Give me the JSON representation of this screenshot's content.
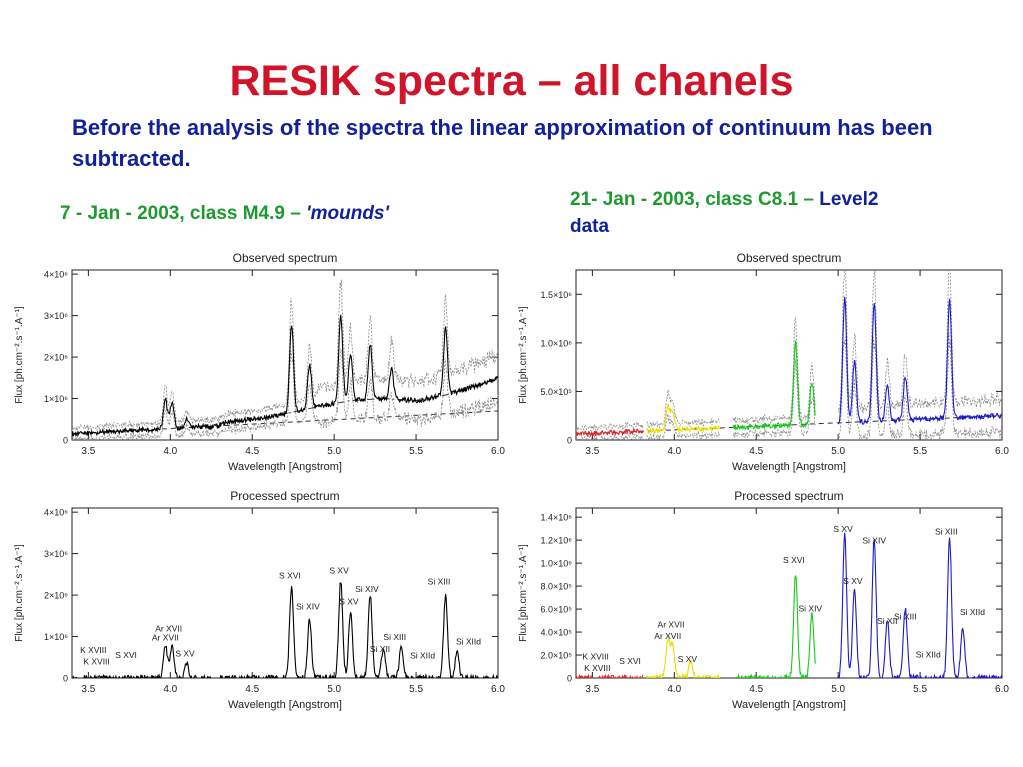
{
  "slide": {
    "title": "RESIK spectra – all chanels",
    "subtitle": "Before the analysis of the spectra the linear approximation of continuum has been subtracted.",
    "left_caption_main": "7 - Jan - 2003, class M4.9 – ",
    "left_caption_em": "'mounds'",
    "right_caption_main": "21- Jan - 2003, class C8.1 – ",
    "right_caption_blue1": "Level2",
    "right_caption_blue2": "data"
  },
  "colors": {
    "title": "#d0152b",
    "subtitle": "#10219a",
    "caption_green": "#1d9a2e",
    "ch1": "#e0262b",
    "ch2": "#e8e000",
    "ch3": "#18c818",
    "ch4": "#1a1ac8"
  },
  "chart_data": [
    {
      "type": "line",
      "panel": "left-observed",
      "title": "Observed spectrum",
      "xlabel": "Wavelength [Angstrom]",
      "ylabel": "Flux [ph.cm⁻².s⁻¹.A⁻¹]",
      "xlim": [
        3.4,
        6.0
      ],
      "ylim": [
        0,
        4100000
      ],
      "xticks": [
        3.5,
        4.0,
        4.5,
        5.0,
        5.5,
        6.0
      ],
      "xtick_labels": [
        "3.5",
        "4.0",
        "4.5",
        "5.0",
        "5.5",
        "6.0"
      ],
      "yticks": [
        0,
        1000000,
        2000000,
        3000000,
        4000000
      ],
      "ytick_labels": [
        "0",
        "1×10⁶",
        "2×10⁶",
        "3×10⁶",
        "4×10⁶"
      ],
      "baseline": [
        [
          3.4,
          150000
        ],
        [
          6.0,
          700000
        ]
      ],
      "mound": [
        [
          4.3,
          400000
        ],
        [
          4.6,
          550000
        ],
        [
          4.9,
          800000
        ],
        [
          5.1,
          950000
        ],
        [
          5.3,
          1000000
        ],
        [
          5.5,
          950000
        ],
        [
          5.7,
          1100000
        ],
        [
          5.9,
          1350000
        ],
        [
          6.0,
          1500000
        ]
      ],
      "peaks": [
        [
          3.97,
          950000
        ],
        [
          4.01,
          900000
        ],
        [
          4.1,
          500000
        ],
        [
          4.74,
          2800000
        ],
        [
          4.85,
          1800000
        ],
        [
          5.04,
          3000000
        ],
        [
          5.1,
          2100000
        ],
        [
          5.22,
          2300000
        ],
        [
          5.35,
          1700000
        ],
        [
          5.68,
          2700000
        ]
      ],
      "series": [
        {
          "x_range": [
            3.4,
            6.0
          ],
          "color": "#000"
        }
      ]
    },
    {
      "type": "line",
      "panel": "left-processed",
      "title": "Processed spectrum",
      "xlabel": "Wavelength [Angstrom]",
      "ylabel": "Flux [ph.cm⁻².s⁻¹.A⁻¹]",
      "xlim": [
        3.4,
        6.0
      ],
      "ylim": [
        0,
        4100000
      ],
      "xticks": [
        3.5,
        4.0,
        4.5,
        5.0,
        5.5,
        6.0
      ],
      "xtick_labels": [
        "3.5",
        "4.0",
        "4.5",
        "5.0",
        "5.5",
        "6.0"
      ],
      "yticks": [
        0,
        1000000,
        2000000,
        3000000,
        4000000
      ],
      "ytick_labels": [
        "0",
        "1×10⁶",
        "2×10⁶",
        "3×10⁶",
        "4×10⁶"
      ],
      "peaks": [
        [
          3.97,
          800000
        ],
        [
          4.01,
          750000
        ],
        [
          4.1,
          350000
        ],
        [
          4.74,
          2200000
        ],
        [
          4.85,
          1400000
        ],
        [
          5.04,
          2350000
        ],
        [
          5.1,
          1600000
        ],
        [
          5.22,
          2000000
        ],
        [
          5.3,
          700000
        ],
        [
          5.41,
          750000
        ],
        [
          5.68,
          2000000
        ],
        [
          5.75,
          600000
        ]
      ],
      "gaps": [
        [
          4.25,
          4.3
        ]
      ],
      "series": [
        {
          "x_range": [
            3.4,
            6.0
          ],
          "color": "#000"
        }
      ],
      "annotations": [
        {
          "text": "K  XVIII",
          "x": 3.53,
          "y": 600000
        },
        {
          "text": "K  XVIII",
          "x": 3.55,
          "y": 330000
        },
        {
          "text": "S  XVI",
          "x": 3.73,
          "y": 480000
        },
        {
          "text": "Ar  XVII",
          "x": 3.99,
          "y": 1120000
        },
        {
          "text": "Ar  XVII",
          "x": 3.97,
          "y": 900000
        },
        {
          "text": "S  XV",
          "x": 4.09,
          "y": 520000
        },
        {
          "text": "S  XVI",
          "x": 4.73,
          "y": 2400000
        },
        {
          "text": "Si  XIV",
          "x": 4.84,
          "y": 1650000
        },
        {
          "text": "S  XV",
          "x": 5.03,
          "y": 2520000
        },
        {
          "text": "S  XV",
          "x": 5.09,
          "y": 1770000
        },
        {
          "text": "Si  XIV",
          "x": 5.2,
          "y": 2070000
        },
        {
          "text": "Si  XII",
          "x": 5.28,
          "y": 630000
        },
        {
          "text": "Si  XIII",
          "x": 5.37,
          "y": 920000
        },
        {
          "text": "Si  XIId",
          "x": 5.54,
          "y": 470000
        },
        {
          "text": "Si  XIII",
          "x": 5.64,
          "y": 2250000
        },
        {
          "text": "Si  XIId",
          "x": 5.82,
          "y": 810000
        }
      ]
    },
    {
      "type": "line",
      "panel": "right-observed",
      "title": "Observed spectrum",
      "xlabel": "Wavelength [Angstrom]",
      "ylabel": "Flux [ph.cm⁻².s⁻¹.A⁻¹]",
      "xlim": [
        3.4,
        6.0
      ],
      "ylim": [
        0,
        1750000
      ],
      "xticks": [
        3.5,
        4.0,
        4.5,
        5.0,
        5.5,
        6.0
      ],
      "xtick_labels": [
        "3.5",
        "4.0",
        "4.5",
        "5.0",
        "5.5",
        "6.0"
      ],
      "yticks": [
        0,
        500000,
        1000000,
        1500000
      ],
      "ytick_labels": [
        "0",
        "5.0×10⁵",
        "1.0×10⁶",
        "1.5×10⁶"
      ],
      "baseline": [
        [
          3.4,
          60000
        ],
        [
          6.0,
          250000
        ]
      ],
      "peaks": [
        [
          3.96,
          350000
        ],
        [
          3.99,
          300000
        ],
        [
          4.74,
          1000000
        ],
        [
          4.84,
          600000
        ],
        [
          5.04,
          1450000
        ],
        [
          5.1,
          800000
        ],
        [
          5.22,
          1400000
        ],
        [
          5.3,
          550000
        ],
        [
          5.41,
          650000
        ],
        [
          5.68,
          1450000
        ]
      ],
      "series": [
        {
          "x_range": [
            3.4,
            3.81
          ],
          "color": "#e0262b"
        },
        {
          "x_range": [
            3.83,
            4.28
          ],
          "color": "#e8e000"
        },
        {
          "x_range": [
            4.36,
            4.86
          ],
          "color": "#18c818"
        },
        {
          "x_range": [
            5.0,
            6.0
          ],
          "color": "#1a1ac8"
        }
      ]
    },
    {
      "type": "line",
      "panel": "right-processed",
      "title": "Processed spectrum",
      "xlabel": "Wavelength [Angstrom]",
      "ylabel": "Flux [ph.cm⁻².s⁻¹.A⁻¹]",
      "xlim": [
        3.4,
        6.0
      ],
      "ylim": [
        0,
        1480000
      ],
      "xticks": [
        3.5,
        4.0,
        4.5,
        5.0,
        5.5,
        6.0
      ],
      "xtick_labels": [
        "3.5",
        "4.0",
        "4.5",
        "5.0",
        "5.5",
        "6.0"
      ],
      "yticks": [
        0,
        200000,
        400000,
        600000,
        800000,
        1000000,
        1200000,
        1400000
      ],
      "ytick_labels": [
        "0",
        "2.0×10⁵",
        "4.0×10⁵",
        "6.0×10⁵",
        "8.0×10⁵",
        "1.0×10⁶",
        "1.2×10⁶",
        "1.4×10⁶"
      ],
      "peaks": [
        [
          3.96,
          330000
        ],
        [
          3.99,
          280000
        ],
        [
          4.1,
          150000
        ],
        [
          4.74,
          900000
        ],
        [
          4.84,
          550000
        ],
        [
          5.04,
          1250000
        ],
        [
          5.1,
          780000
        ],
        [
          5.22,
          1200000
        ],
        [
          5.3,
          500000
        ],
        [
          5.41,
          600000
        ],
        [
          5.68,
          1230000
        ],
        [
          5.76,
          450000
        ]
      ],
      "series": [
        {
          "x_range": [
            3.4,
            3.81
          ],
          "color": "#e0262b"
        },
        {
          "x_range": [
            3.83,
            4.28
          ],
          "color": "#e8e000"
        },
        {
          "x_range": [
            4.36,
            4.86
          ],
          "color": "#18c818"
        },
        {
          "x_range": [
            5.0,
            6.0
          ],
          "color": "#1a1ac8"
        }
      ],
      "annotations": [
        {
          "text": "K  XVIII",
          "x": 3.52,
          "y": 160000
        },
        {
          "text": "K  XVIII",
          "x": 3.53,
          "y": 60000
        },
        {
          "text": "S  XVI",
          "x": 3.73,
          "y": 120000
        },
        {
          "text": "Ar  XVII",
          "x": 3.98,
          "y": 440000
        },
        {
          "text": "Ar  XVII",
          "x": 3.96,
          "y": 340000
        },
        {
          "text": "S  XV",
          "x": 4.08,
          "y": 140000
        },
        {
          "text": "S  XVI",
          "x": 4.73,
          "y": 1000000
        },
        {
          "text": "Si  XIV",
          "x": 4.83,
          "y": 580000
        },
        {
          "text": "S  XV",
          "x": 5.03,
          "y": 1270000
        },
        {
          "text": "S  XV",
          "x": 5.09,
          "y": 820000
        },
        {
          "text": "Si  XIV",
          "x": 5.22,
          "y": 1170000
        },
        {
          "text": "Si  XII",
          "x": 5.3,
          "y": 470000
        },
        {
          "text": "Si  XIII",
          "x": 5.41,
          "y": 510000
        },
        {
          "text": "Si  XIId",
          "x": 5.55,
          "y": 180000
        },
        {
          "text": "Si  XIII",
          "x": 5.66,
          "y": 1250000
        },
        {
          "text": "Si  XIId",
          "x": 5.82,
          "y": 550000
        }
      ]
    }
  ]
}
